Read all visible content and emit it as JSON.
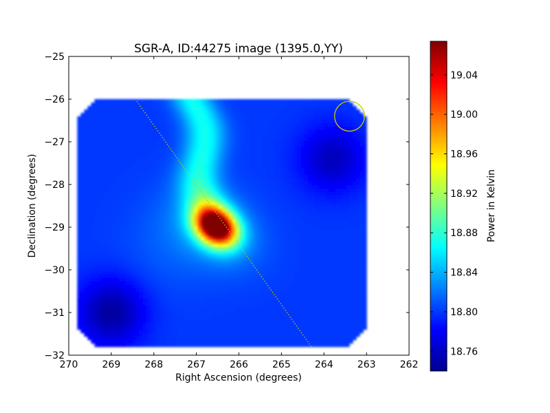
{
  "chart_data": {
    "type": "heatmap",
    "title": "SGR-A, ID:44275 image (1395.0,YY)",
    "xlabel": "Right Ascension (degrees)",
    "ylabel": "Declination (degrees)",
    "xlim": [
      270,
      262
    ],
    "ylim": [
      -32,
      -25
    ],
    "x_ticks": [
      270,
      269,
      268,
      267,
      266,
      265,
      264,
      263,
      262
    ],
    "y_ticks": [
      -25,
      -26,
      -27,
      -28,
      -29,
      -30,
      -31,
      -32
    ],
    "x_tick_labels": [
      "270",
      "269",
      "268",
      "267",
      "266",
      "265",
      "264",
      "263",
      "262"
    ],
    "y_tick_labels": [
      "−25",
      "−26",
      "−27",
      "−28",
      "−29",
      "−30",
      "−31",
      "−32"
    ],
    "data_extent": {
      "ra": [
        269.8,
        263.0
      ],
      "dec": [
        -31.8,
        -26.0
      ]
    },
    "colormap": "jet",
    "colorbar": {
      "label": "Power in Kelvin",
      "range": [
        18.74,
        19.074
      ],
      "ticks": [
        18.76,
        18.8,
        18.84,
        18.88,
        18.92,
        18.96,
        19.0,
        19.04
      ],
      "tick_labels": [
        "18.76",
        "18.80",
        "18.84",
        "18.88",
        "18.92",
        "18.96",
        "19.00",
        "19.04"
      ]
    },
    "background_level": 18.8,
    "features": [
      {
        "type": "peak",
        "ra": 266.55,
        "dec": -29.0,
        "value": 19.07
      },
      {
        "type": "ridge",
        "from_ra": 267.1,
        "from_dec": -26.1,
        "to_ra": 266.6,
        "to_dec": -28.8,
        "value": 18.87
      },
      {
        "type": "minimum",
        "ra": 269.0,
        "dec": -31.0,
        "value": 18.75
      },
      {
        "type": "minimum",
        "ra": 263.8,
        "dec": -27.4,
        "value": 18.76
      }
    ],
    "overlays": [
      {
        "type": "dotted-line",
        "color": "#c8c800",
        "from_ra": 268.4,
        "from_dec": -26.05,
        "to_ra": 264.3,
        "to_dec": -31.8
      },
      {
        "type": "circle",
        "color": "#c8c800",
        "ra": 263.4,
        "dec": -26.4,
        "radius_deg": 0.35
      }
    ],
    "grid": false,
    "legend": "none"
  }
}
